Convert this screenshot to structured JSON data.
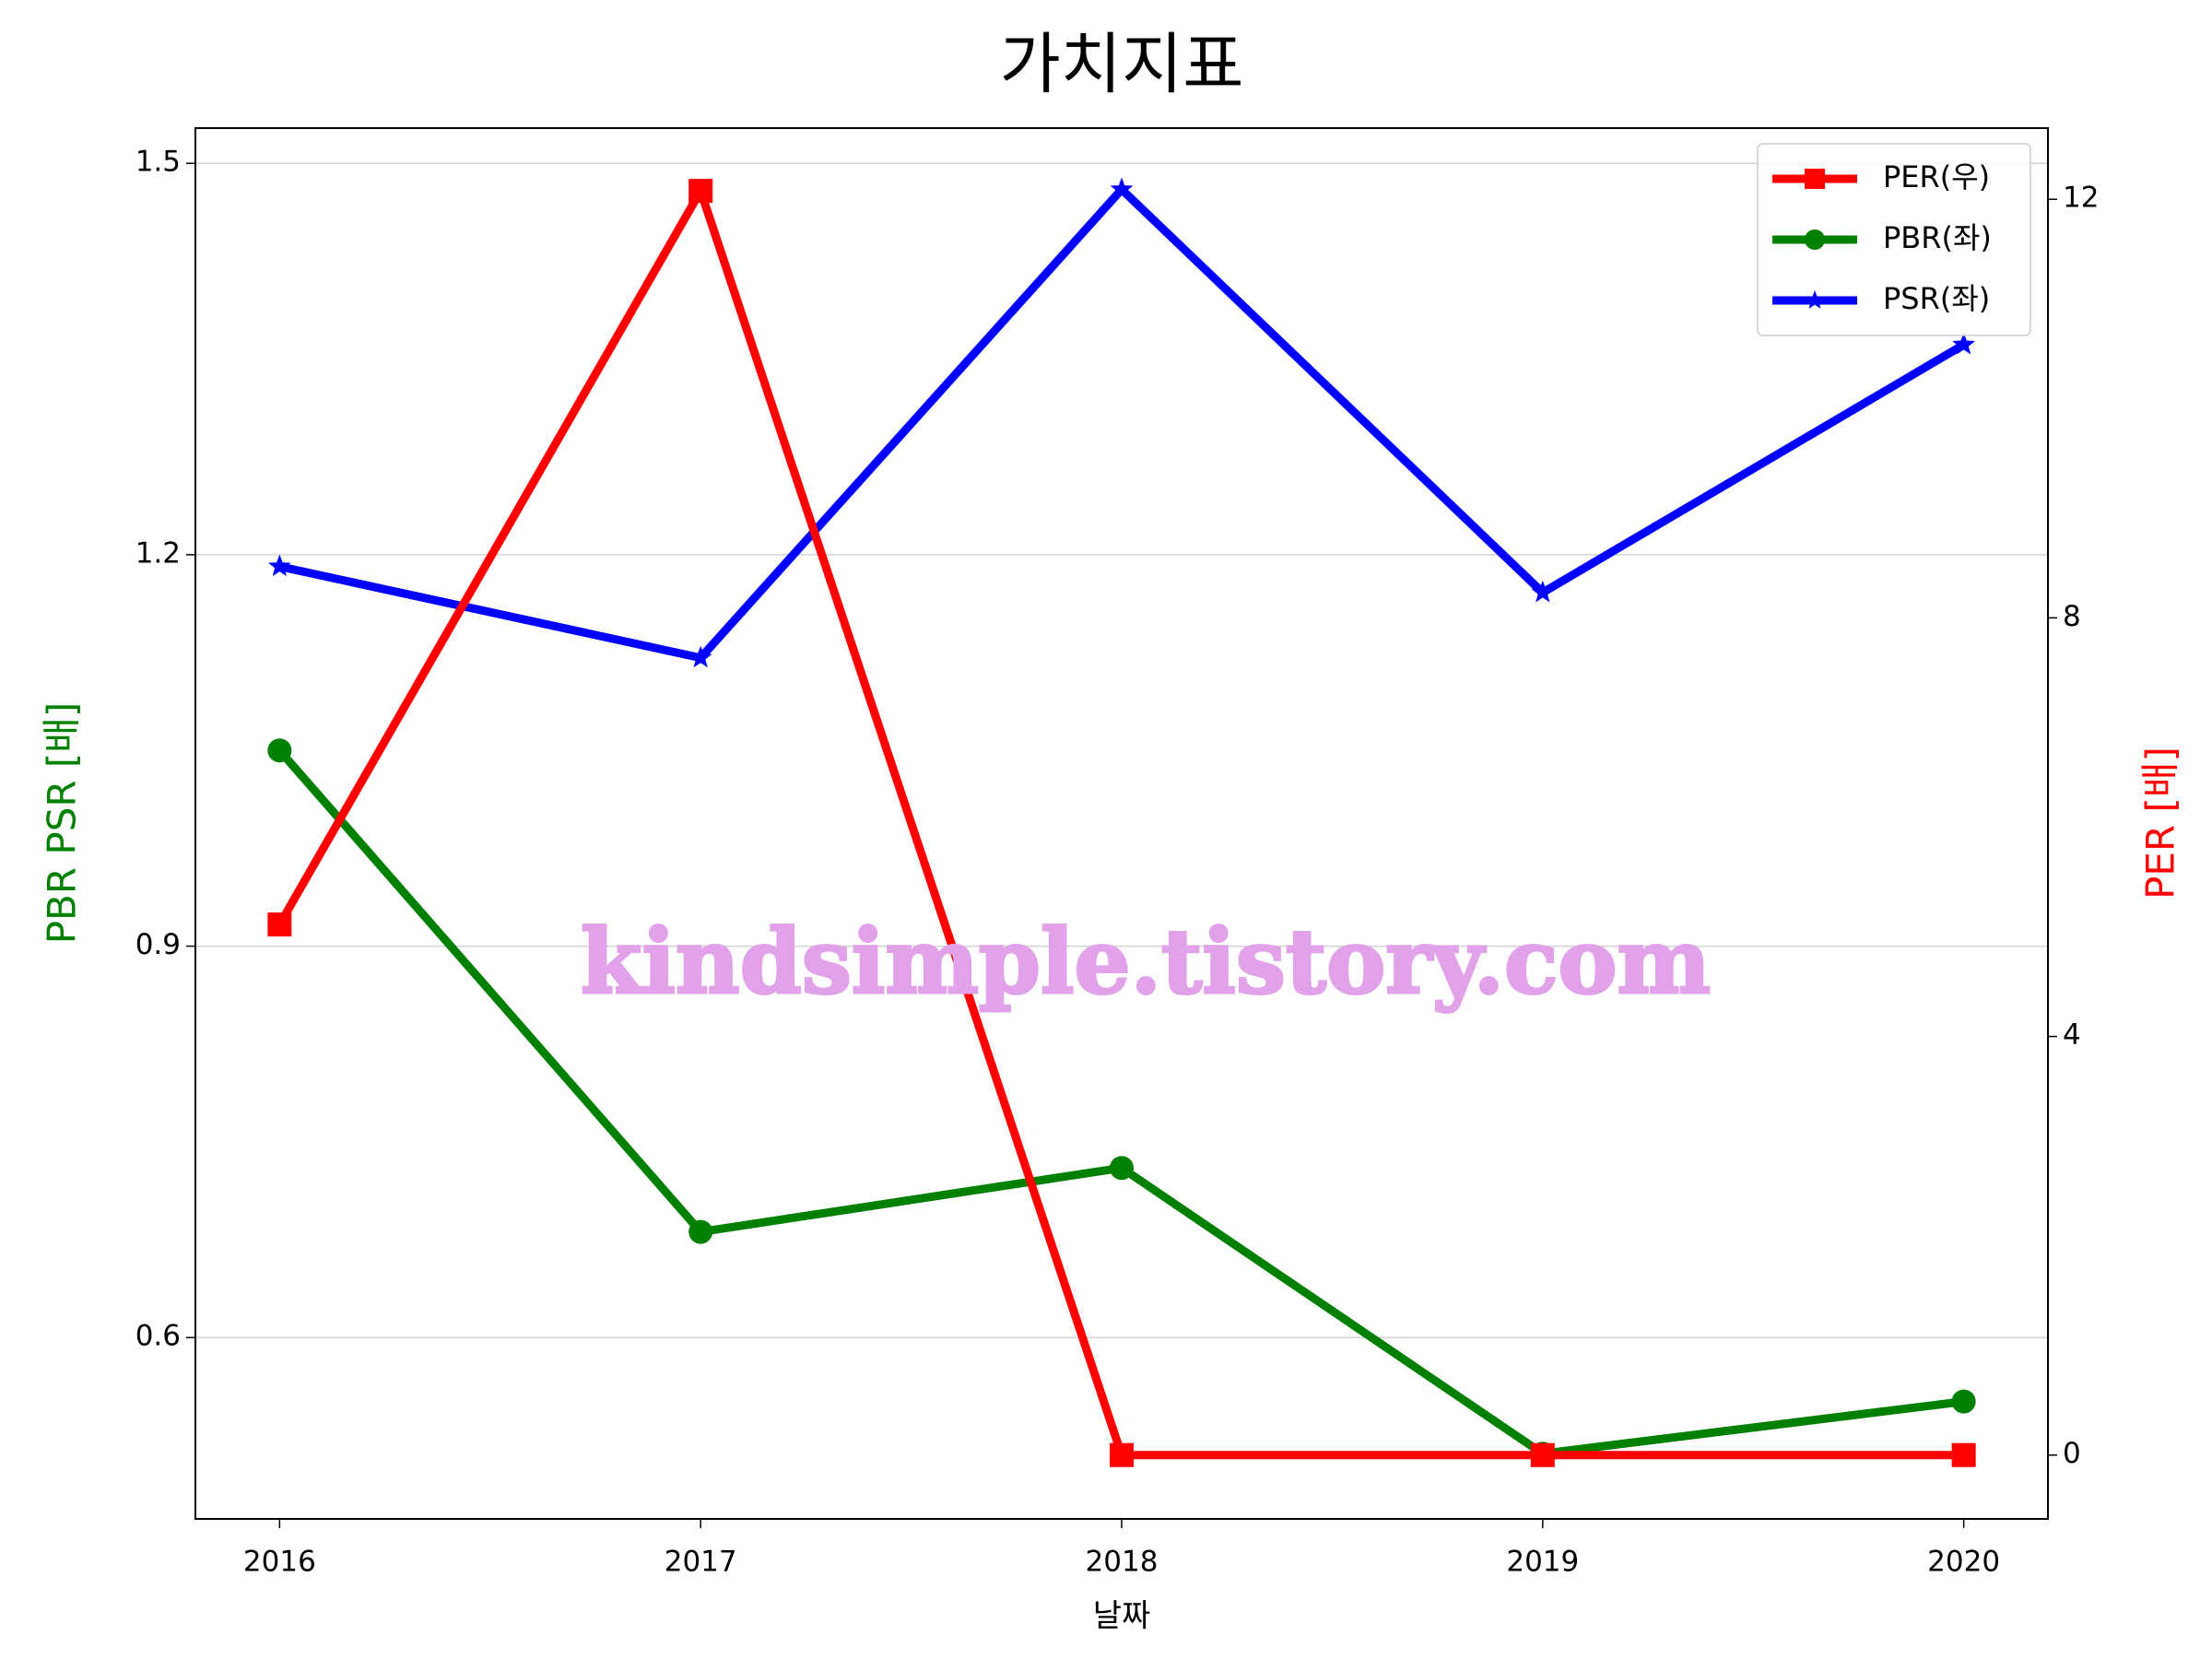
{
  "chart_data": {
    "type": "line",
    "title": "가치지표",
    "x_label": "날짜",
    "y_label": "PBR PSR [배]",
    "y2_label": "PER [배]",
    "x": [
      2016,
      2017,
      2018,
      2019,
      2020
    ],
    "xlim": [
      2015.8,
      2020.2
    ],
    "xticks": [
      2016,
      2017,
      2018,
      2019,
      2020
    ],
    "ylim": [
      0.461,
      1.527
    ],
    "yticks": [
      0.6,
      0.9,
      1.2,
      1.5
    ],
    "y2lim": [
      -0.61,
      12.68
    ],
    "y2ticks": [
      0,
      4,
      8,
      12
    ],
    "grid": true,
    "legend": "upper right",
    "y_label_color": "#008000",
    "y2_label_color": "#ff0000",
    "watermark": "kindsimple.tistory.com",
    "series": [
      {
        "name": "PER(우)",
        "color": "#ff0000",
        "marker": "square",
        "axis": "y2",
        "values": [
          5.07,
          12.08,
          0,
          0,
          0
        ]
      },
      {
        "name": "PBR(좌)",
        "color": "#008000",
        "marker": "circle",
        "values": [
          1.05,
          0.681,
          0.73,
          0.511,
          0.551
        ]
      },
      {
        "name": "PSR(좌)",
        "color": "#0000ff",
        "marker": "star",
        "values": [
          1.191,
          1.121,
          1.48,
          1.171,
          1.361
        ]
      }
    ]
  }
}
